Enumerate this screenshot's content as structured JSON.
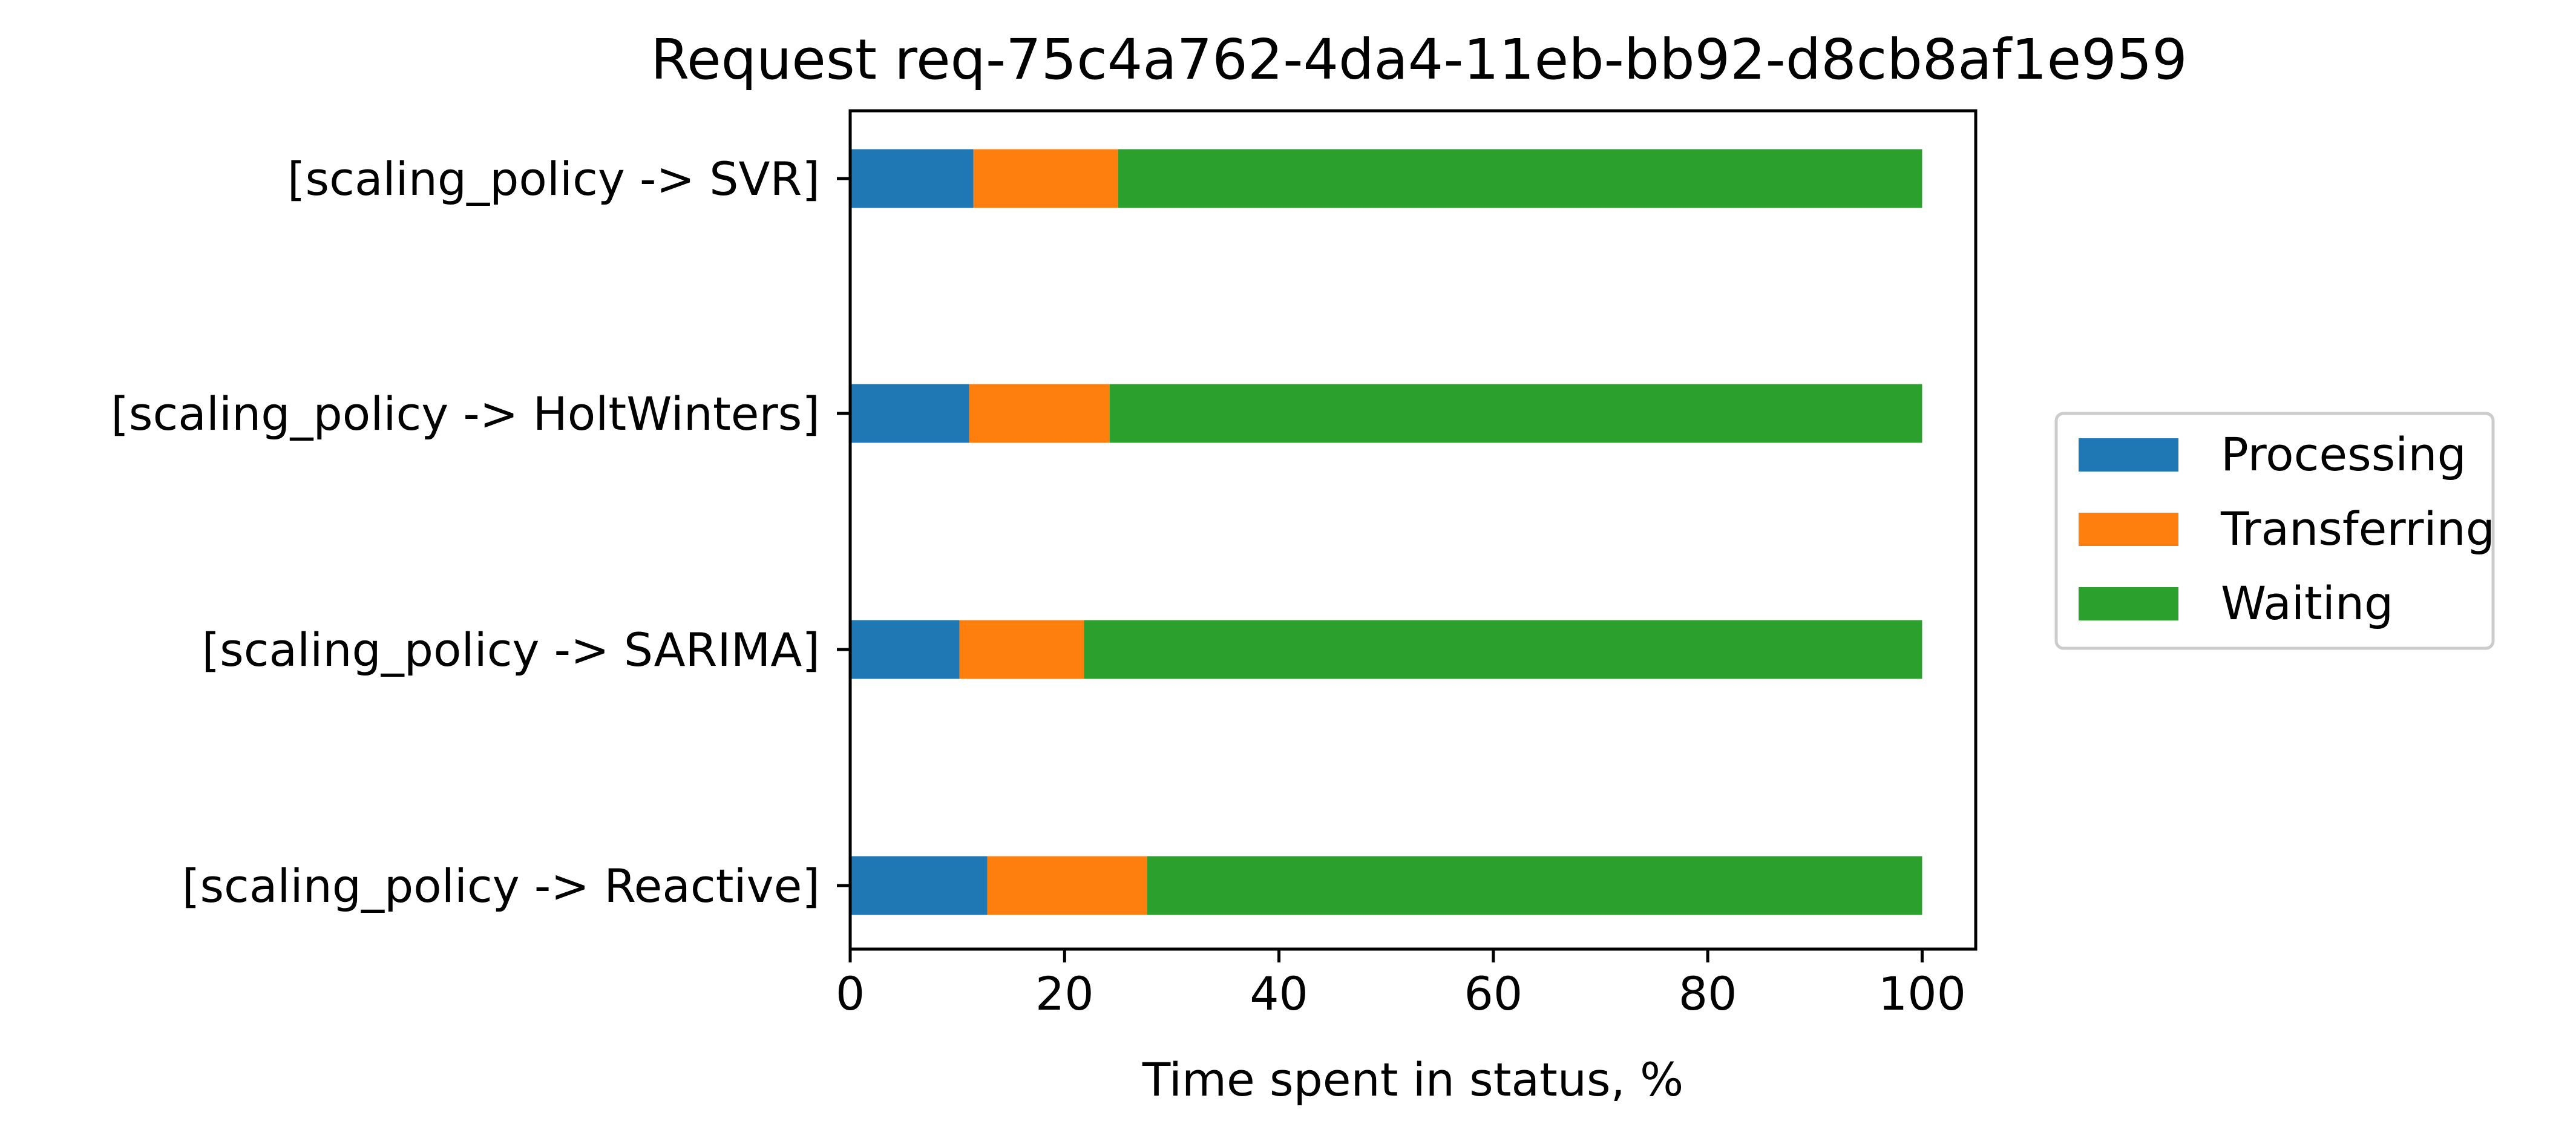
{
  "chart_data": {
    "type": "bar",
    "orientation": "horizontal",
    "stacked": true,
    "title": "Request req-75c4a762-4da4-11eb-bb92-d8cb8af1e959",
    "xlabel": "Time spent in status, %",
    "ylabel": "",
    "xlim": [
      0,
      105
    ],
    "xticks": [
      "0",
      "20",
      "40",
      "60",
      "80",
      "100"
    ],
    "categories": [
      "[scaling_policy -> SVR]",
      "[scaling_policy -> HoltWinters]",
      "[scaling_policy -> SARIMA]",
      "[scaling_policy -> Reactive]"
    ],
    "series": [
      {
        "name": "Processing",
        "color": "#1f77b4",
        "values": [
          11.5,
          11.1,
          10.2,
          12.8
        ]
      },
      {
        "name": "Transferring",
        "color": "#ff7f0e",
        "values": [
          13.5,
          13.1,
          11.6,
          14.9
        ]
      },
      {
        "name": "Waiting",
        "color": "#2ca02c",
        "values": [
          75.0,
          75.8,
          78.2,
          72.3
        ]
      }
    ],
    "legend": "right",
    "grid": false
  }
}
